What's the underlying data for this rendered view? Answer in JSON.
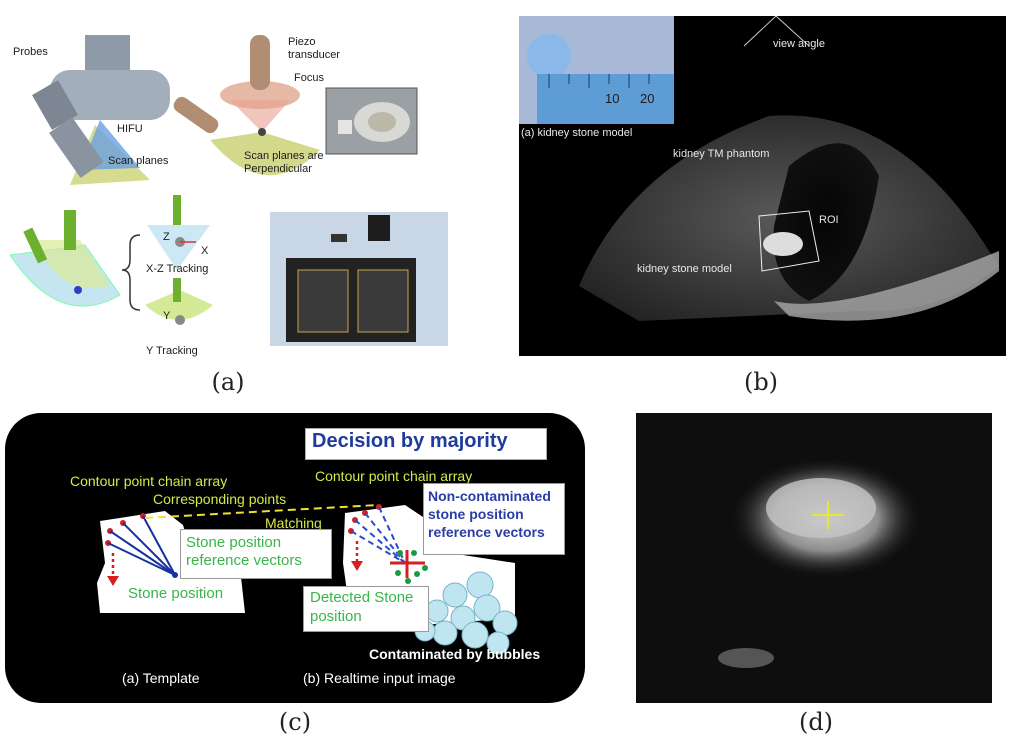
{
  "captions": {
    "a": "(a)",
    "b": "(b)",
    "c": "(c)",
    "d": "(d)"
  },
  "panel_a": {
    "probes": "Probes",
    "hifu": "HIFU",
    "scan_planes": "Scan planes",
    "piezo_1": "Piezo",
    "piezo_2": "transducer",
    "focus": "Focus",
    "perp_1": "Scan planes are",
    "perp_2": "Perpendicular",
    "z": "Z",
    "x": "X",
    "y": "Y",
    "xz_tracking": "X-Z Tracking",
    "y_tracking": "Y Tracking"
  },
  "panel_b": {
    "view_angle": "view angle",
    "ruler_10": "10",
    "ruler_20": "20",
    "inset_caption": "(a) kidney stone model",
    "phantom": "kidney TM phantom",
    "roi": "ROI",
    "stone_model": "kidney stone model"
  },
  "panel_c": {
    "title": "Decision by majority",
    "contour_array_1": "Contour point chain array",
    "contour_array_2": "Contour point chain array",
    "corresponding": "Corresponding points",
    "matching": "Matching",
    "ref_vectors_1": "Stone position",
    "ref_vectors_2": "reference vectors",
    "stone_position": "Stone position",
    "noncontam_1": "Non-contaminated",
    "noncontam_2": "stone position",
    "noncontam_3": "reference vectors",
    "detected_1": "Detected Stone",
    "detected_2": "position",
    "contaminated": "Contaminated by bubbles",
    "template": "(a) Template",
    "realtime": "(b) Realtime input image"
  }
}
